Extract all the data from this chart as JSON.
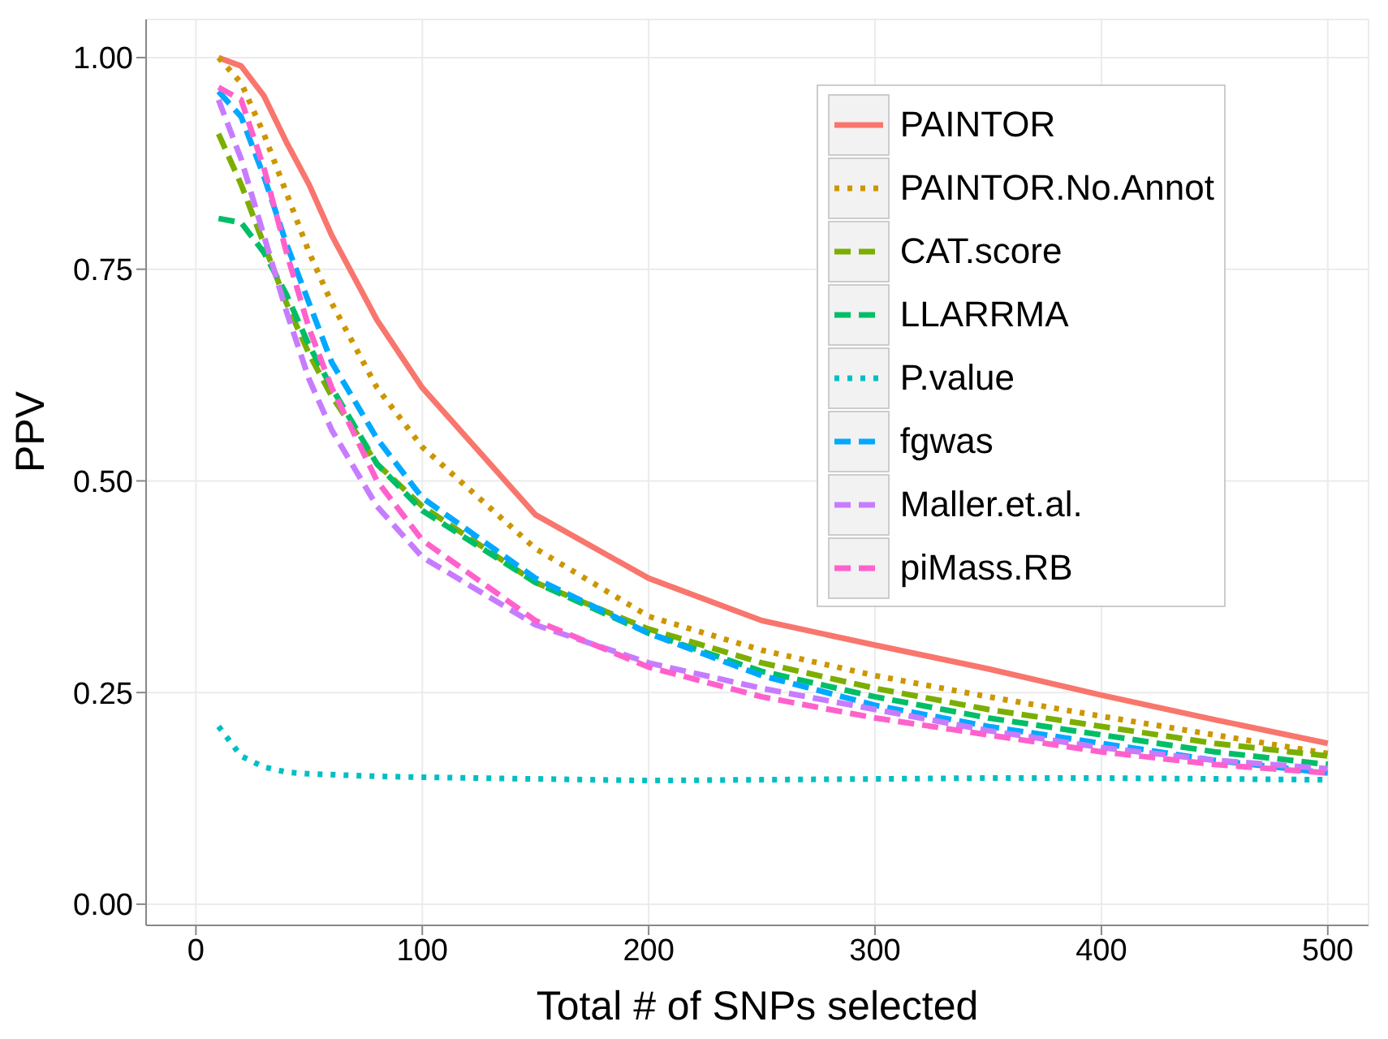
{
  "chart_data": {
    "type": "line",
    "xlabel": "Total # of SNPs selected",
    "ylabel": "PPV",
    "x": [
      10,
      20,
      30,
      40,
      50,
      60,
      80,
      100,
      150,
      200,
      250,
      300,
      350,
      400,
      450,
      500
    ],
    "xlim": [
      -22,
      518
    ],
    "xticks": [
      0,
      100,
      200,
      300,
      400,
      500
    ],
    "ylim": [
      -0.025,
      1.045
    ],
    "yticks": [
      {
        "value": 0,
        "label": "0.00"
      },
      {
        "value": 0.25,
        "label": "0.25"
      },
      {
        "value": 0.5,
        "label": "0.50"
      },
      {
        "value": 0.75,
        "label": "0.75"
      },
      {
        "value": 1,
        "label": "1.00"
      }
    ],
    "grid": true,
    "legend": "top right",
    "marker": "none",
    "series": [
      {
        "name": "PAINTOR",
        "color": "#f8766d",
        "line_style": "solid",
        "values": [
          1.0,
          0.99,
          0.955,
          0.9,
          0.85,
          0.79,
          0.69,
          0.61,
          0.46,
          0.385,
          0.335,
          0.306,
          0.278,
          0.247,
          0.218,
          0.19
        ]
      },
      {
        "name": "PAINTOR.No.Annot",
        "color": "#cd9600",
        "line_style": "dotted",
        "values": [
          1.0,
          0.97,
          0.91,
          0.84,
          0.77,
          0.71,
          0.61,
          0.54,
          0.42,
          0.34,
          0.3,
          0.27,
          0.245,
          0.222,
          0.2,
          0.178
        ]
      },
      {
        "name": "CAT.score",
        "color": "#7cae00",
        "line_style": "dashed",
        "values": [
          0.91,
          0.85,
          0.78,
          0.71,
          0.65,
          0.6,
          0.52,
          0.47,
          0.38,
          0.325,
          0.285,
          0.255,
          0.23,
          0.21,
          0.19,
          0.175
        ]
      },
      {
        "name": "LLARRMA",
        "color": "#00be67",
        "line_style": "dashed",
        "values": [
          0.81,
          0.805,
          0.77,
          0.72,
          0.66,
          0.61,
          0.52,
          0.465,
          0.38,
          0.32,
          0.275,
          0.245,
          0.22,
          0.2,
          0.18,
          0.165
        ]
      },
      {
        "name": "P.value",
        "color": "#00bfc4",
        "line_style": "dotted",
        "values": [
          0.21,
          0.175,
          0.162,
          0.156,
          0.154,
          0.153,
          0.151,
          0.15,
          0.148,
          0.146,
          0.147,
          0.148,
          0.149,
          0.149,
          0.148,
          0.147
        ]
      },
      {
        "name": "fgwas",
        "color": "#00a9ff",
        "line_style": "dashed",
        "values": [
          0.96,
          0.93,
          0.86,
          0.78,
          0.71,
          0.64,
          0.55,
          0.48,
          0.385,
          0.32,
          0.27,
          0.235,
          0.21,
          0.19,
          0.17,
          0.155
        ]
      },
      {
        "name": "Maller.et.al.",
        "color": "#c77cff",
        "line_style": "dashed",
        "values": [
          0.95,
          0.88,
          0.79,
          0.7,
          0.62,
          0.56,
          0.47,
          0.41,
          0.33,
          0.285,
          0.255,
          0.23,
          0.205,
          0.185,
          0.17,
          0.16
        ]
      },
      {
        "name": "piMass.RB",
        "color": "#ff61cc",
        "line_style": "dashed",
        "values": [
          0.965,
          0.95,
          0.87,
          0.77,
          0.68,
          0.61,
          0.5,
          0.43,
          0.335,
          0.28,
          0.245,
          0.22,
          0.2,
          0.18,
          0.165,
          0.155
        ]
      }
    ]
  }
}
